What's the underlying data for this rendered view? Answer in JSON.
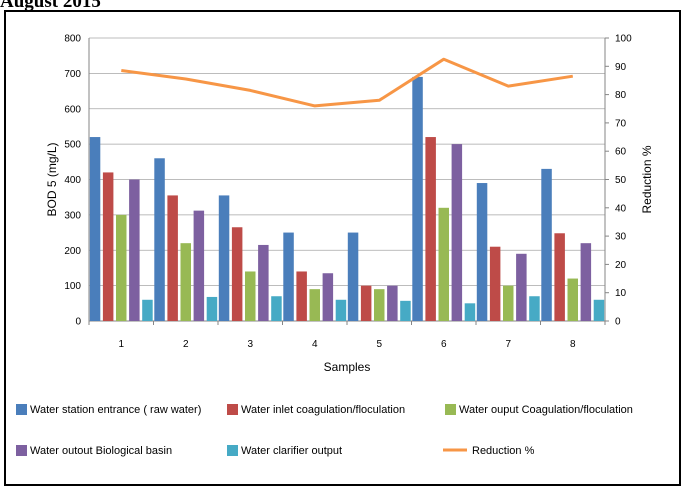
{
  "heading": "August 2015",
  "chart_data": {
    "type": "bar",
    "categories": [
      "1",
      "2",
      "3",
      "4",
      "5",
      "6",
      "7",
      "8"
    ],
    "xlabel": "Samples",
    "ylabel": "BOD 5 (mg/L)",
    "y2label": "Reduction %",
    "ylim": [
      0,
      800
    ],
    "y2lim": [
      0,
      100
    ],
    "yticks": [
      "0",
      "100",
      "200",
      "300",
      "400",
      "500",
      "600",
      "700",
      "800"
    ],
    "y2ticks": [
      "0",
      "10",
      "20",
      "30",
      "40",
      "50",
      "60",
      "70",
      "80",
      "90",
      "100"
    ],
    "grid": "horizontal",
    "legend_position": "bottom",
    "series": [
      {
        "name": "Water station entrance ( raw water)",
        "color": "#4a7ebb",
        "values": [
          520,
          460,
          355,
          250,
          250,
          690,
          390,
          430
        ]
      },
      {
        "name": "Water inlet coagulation/floculation",
        "color": "#be4b48",
        "values": [
          420,
          355,
          265,
          140,
          100,
          520,
          210,
          248
        ]
      },
      {
        "name": "Water ouput Coagulation/floculation",
        "color": "#98b954",
        "values": [
          300,
          220,
          140,
          90,
          90,
          320,
          100,
          120
        ]
      },
      {
        "name": "Water outout Biological basin",
        "color": "#7d60a0",
        "values": [
          400,
          312,
          215,
          135,
          100,
          500,
          190,
          220
        ]
      },
      {
        "name": "Water clarifier output",
        "color": "#46aac5",
        "values": [
          60,
          68,
          70,
          60,
          57,
          50,
          70,
          60
        ]
      }
    ],
    "line_series": {
      "name": "Reduction %",
      "color": "#f79646",
      "axis": "right",
      "values": [
        88.5,
        85.5,
        81.5,
        76,
        78,
        92.5,
        83,
        86.5
      ]
    }
  }
}
